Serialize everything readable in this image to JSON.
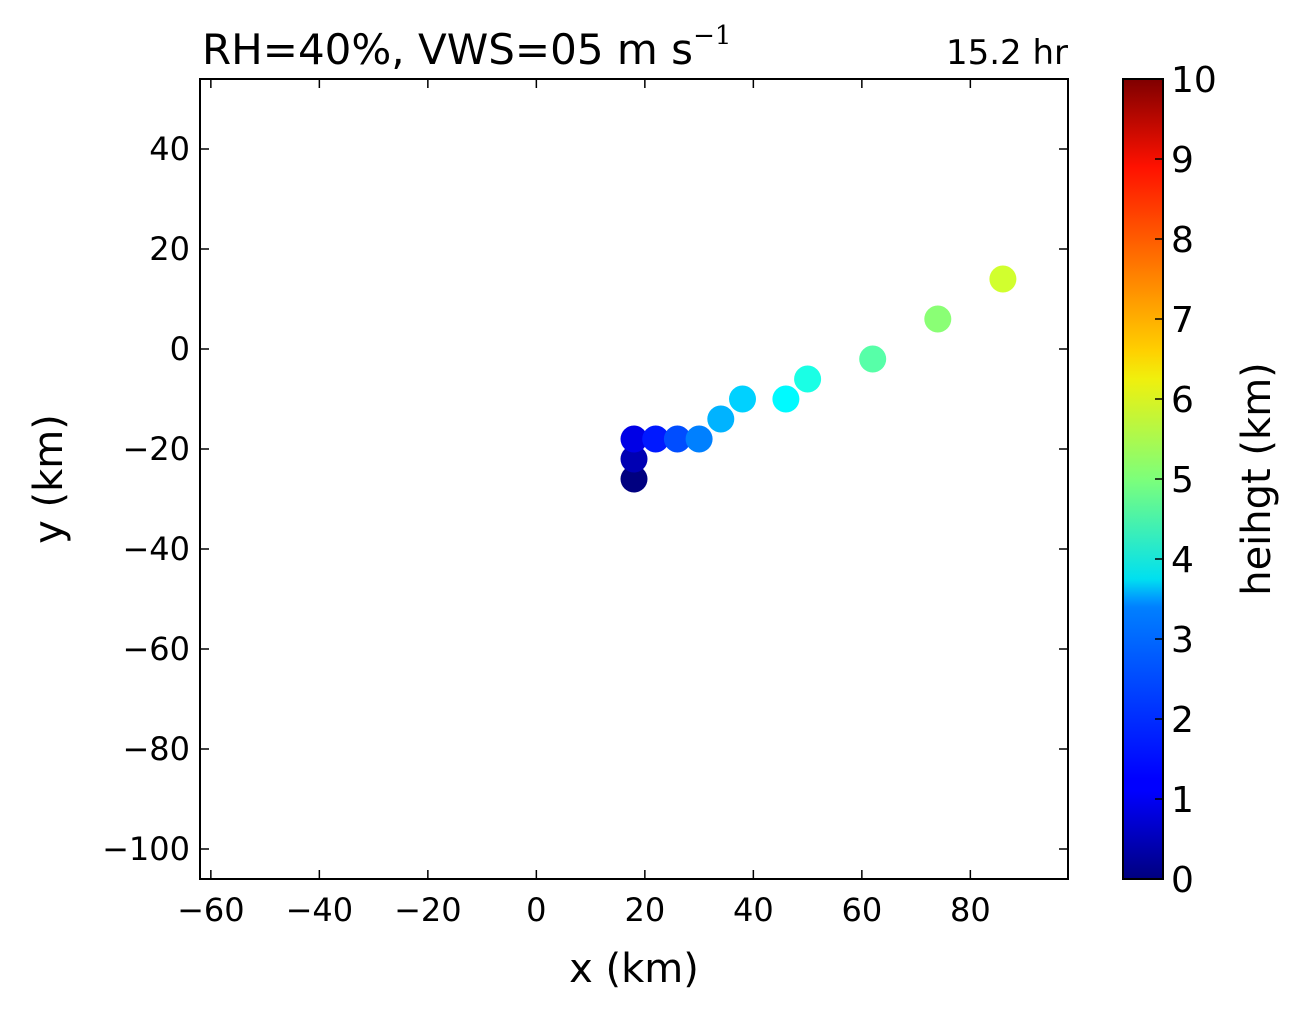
{
  "chart_data": {
    "type": "scatter",
    "title_main": "RH=40%, VWS=05 m s",
    "title_sup": "−1",
    "time_label": "15.2 hr",
    "time_label_color": "#0000ff",
    "xlabel": "x (km)",
    "ylabel": "y (km)",
    "xlim": [
      -62,
      98
    ],
    "ylim": [
      -106,
      54
    ],
    "xticks": [
      -60,
      -40,
      -20,
      0,
      20,
      40,
      60,
      80
    ],
    "xtick_labels": [
      "−60",
      "−40",
      "−20",
      "0",
      "20",
      "40",
      "60",
      "80"
    ],
    "yticks": [
      -100,
      -80,
      -60,
      -40,
      -20,
      0,
      20,
      40
    ],
    "ytick_labels": [
      "−100",
      "−80",
      "−60",
      "−40",
      "−20",
      "0",
      "20",
      "40"
    ],
    "points": [
      {
        "x": 18,
        "y": -26,
        "height": 0.0
      },
      {
        "x": 18,
        "y": -22,
        "height": 0.5
      },
      {
        "x": 18,
        "y": -18,
        "height": 1.0
      },
      {
        "x": 22,
        "y": -18,
        "height": 1.5
      },
      {
        "x": 26,
        "y": -18,
        "height": 2.0
      },
      {
        "x": 30,
        "y": -18,
        "height": 2.5
      },
      {
        "x": 34,
        "y": -14,
        "height": 3.0
      },
      {
        "x": 38,
        "y": -10,
        "height": 3.3
      },
      {
        "x": 46,
        "y": -10,
        "height": 3.7
      },
      {
        "x": 50,
        "y": -6,
        "height": 4.0
      },
      {
        "x": 62,
        "y": -2,
        "height": 4.6
      },
      {
        "x": 74,
        "y": 6,
        "height": 5.1
      },
      {
        "x": 86,
        "y": 14,
        "height": 5.8
      }
    ],
    "colorbar": {
      "label": "heihgt (km)",
      "min": 0,
      "max": 10,
      "ticks": [
        0,
        1,
        2,
        3,
        4,
        5,
        6,
        7,
        8,
        9,
        10
      ],
      "tick_labels": [
        "0",
        "1",
        "2",
        "3",
        "4",
        "5",
        "6",
        "7",
        "8",
        "9",
        "10"
      ],
      "colormap": "jet"
    }
  }
}
